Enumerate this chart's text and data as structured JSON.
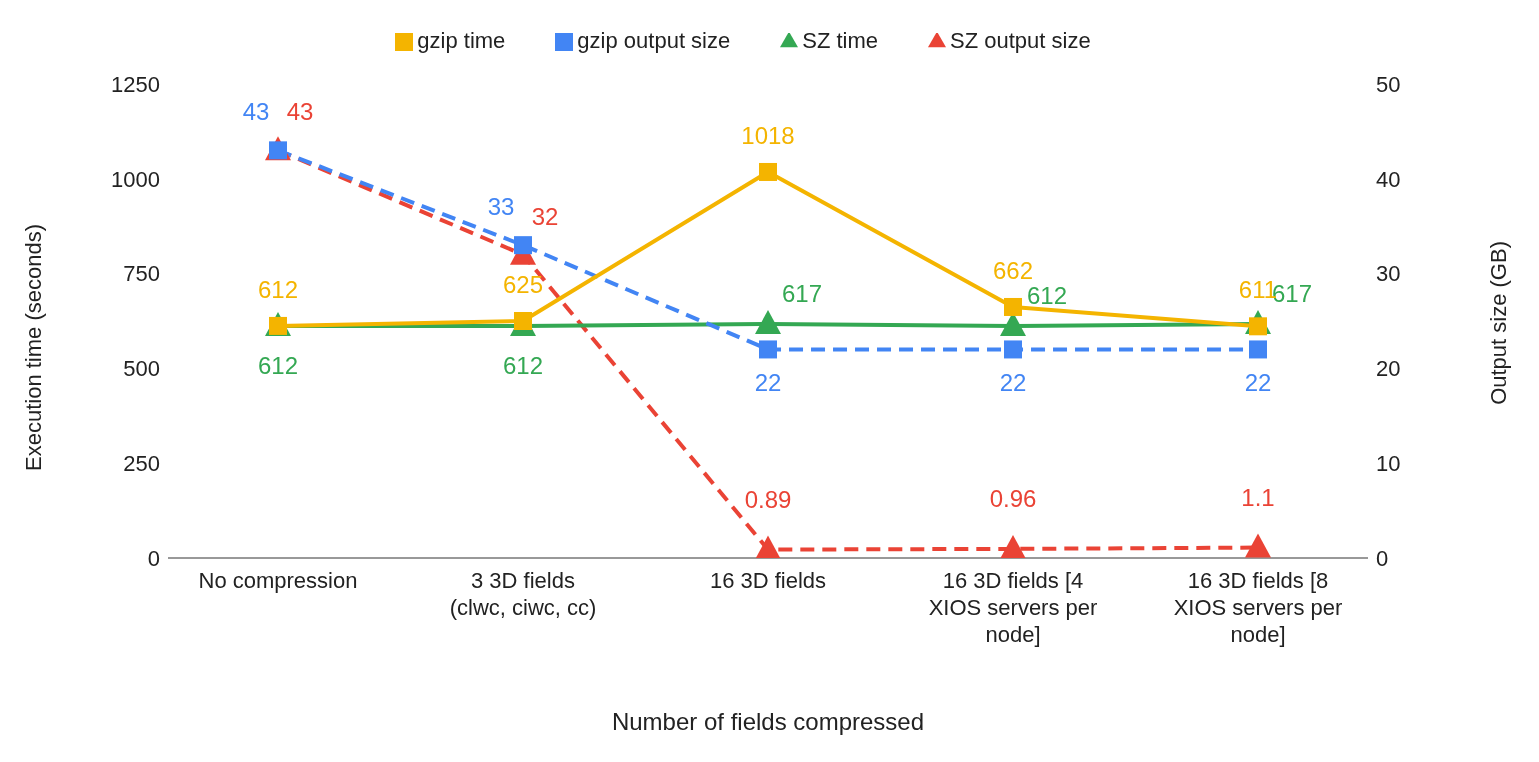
{
  "chart_data": {
    "type": "line",
    "categories": [
      "No compression",
      "3 3D fields (clwc, ciwc, cc)",
      "16 3D fields",
      "16 3D fields [4 XIOS servers per node]",
      "16 3D fields [8 XIOS servers per node]"
    ],
    "series": [
      {
        "name": "gzip time",
        "color": "#f4b400",
        "values": [
          612,
          625,
          1018,
          662,
          611
        ],
        "marker": "square",
        "line_style": "solid"
      },
      {
        "name": "gzip output size",
        "color": "#4285f4",
        "values": [
          43,
          33,
          22,
          22,
          22
        ],
        "marker": "square",
        "line_style": "dashed",
        "axis": "y2"
      },
      {
        "name": "SZ time",
        "color": "#34a853",
        "values": [
          612,
          612,
          617,
          612,
          617
        ],
        "marker": "triangle",
        "line_style": "solid"
      },
      {
        "name": "SZ output size",
        "color": "#ea4335",
        "values": [
          43,
          32,
          0.89,
          0.96,
          1.1
        ],
        "marker": "triangle",
        "line_style": "dashed",
        "axis": "y2"
      }
    ],
    "xlabel": "Number of fields compressed",
    "ylabel": "Execution time (seconds)",
    "y2label": "Output size (GB)",
    "ylim": [
      0,
      1250
    ],
    "yticks": [
      0,
      250,
      500,
      750,
      1000,
      1250
    ],
    "y2lim": [
      0,
      50
    ],
    "y2ticks": [
      0,
      10,
      20,
      30,
      40,
      50
    ],
    "data_labels": true,
    "legend": "top",
    "grid": false
  }
}
